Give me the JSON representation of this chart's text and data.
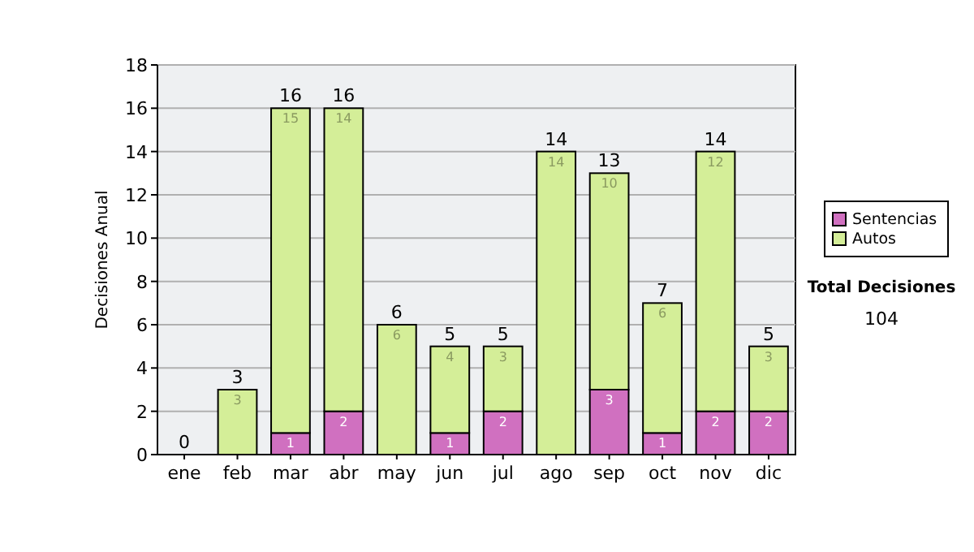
{
  "chart_data": {
    "type": "bar",
    "stacked": true,
    "ylabel": "Decisiones Anual",
    "categories": [
      "ene",
      "feb",
      "mar",
      "abr",
      "may",
      "jun",
      "jul",
      "ago",
      "sep",
      "oct",
      "nov",
      "dic"
    ],
    "series": [
      {
        "name": "Sentencias",
        "color": "#d070c0",
        "values": [
          0,
          0,
          1,
          2,
          0,
          1,
          2,
          0,
          3,
          1,
          2,
          2
        ],
        "value_labels": [
          null,
          null,
          "1",
          "2",
          null,
          "1",
          "2",
          null,
          "3",
          "1",
          "2",
          "2"
        ]
      },
      {
        "name": "Autos",
        "color": "#d4ee98",
        "values": [
          0,
          3,
          15,
          14,
          6,
          4,
          3,
          14,
          10,
          6,
          12,
          3
        ],
        "value_labels": [
          null,
          "3",
          "15",
          "14",
          "6",
          "4",
          "3",
          "14",
          "10",
          "6",
          "12",
          "3"
        ]
      }
    ],
    "totals": [
      "0",
      "3",
      "16",
      "16",
      "6",
      "5",
      "5",
      "14",
      "13",
      "7",
      "14",
      "5"
    ],
    "ylim": [
      0,
      18
    ],
    "yticks": [
      0,
      2,
      4,
      6,
      8,
      10,
      12,
      14,
      16,
      18
    ],
    "grid": "y",
    "legend": "right",
    "annotations": [
      "Total Decisiones",
      "104"
    ]
  }
}
